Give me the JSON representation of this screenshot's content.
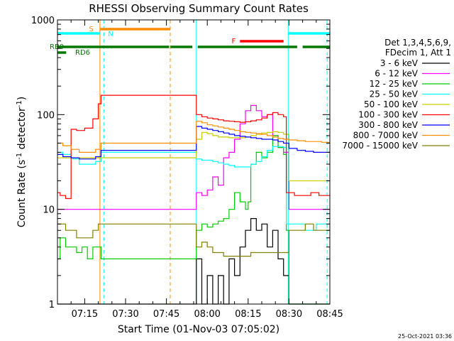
{
  "chart_data": {
    "type": "line",
    "title": "RHESSI Observing Summary Count Rates",
    "xlabel": "Start Time (01-Nov-03 07:05:02)",
    "ylabel_parts": [
      "Count Rate (s",
      "-1",
      " detector",
      "-1",
      ")"
    ],
    "yscale": "log",
    "ylim": [
      1,
      1000
    ],
    "xlim_minutes_from_0700": [
      5,
      105
    ],
    "x_ticks": [
      {
        "label": "07:15",
        "t": 15
      },
      {
        "label": "07:30",
        "t": 30
      },
      {
        "label": "07:45",
        "t": 45
      },
      {
        "label": "08:00",
        "t": 60
      },
      {
        "label": "08:15",
        "t": 75
      },
      {
        "label": "08:30",
        "t": 90
      },
      {
        "label": "08:45",
        "t": 105
      }
    ],
    "y_ticks": [
      {
        "label": "1",
        "v": 1
      },
      {
        "label": "10",
        "v": 10
      },
      {
        "label": "100",
        "v": 100
      },
      {
        "label": "1000",
        "v": 1000
      }
    ],
    "legend_header": [
      "Det 1,3,4,5,6,9,",
      "FDecim 1, Att 1"
    ],
    "series": [
      {
        "name": "3 - 6 keV",
        "color": "#000000",
        "points": [
          [
            5,
            1
          ],
          [
            21,
            1
          ],
          [
            55,
            1
          ],
          [
            56,
            3
          ],
          [
            58,
            1
          ],
          [
            60,
            2
          ],
          [
            62,
            1
          ],
          [
            64,
            2
          ],
          [
            66,
            1
          ],
          [
            68,
            3
          ],
          [
            70,
            2
          ],
          [
            72,
            4
          ],
          [
            74,
            6
          ],
          [
            76,
            8
          ],
          [
            78,
            6
          ],
          [
            80,
            7
          ],
          [
            82,
            4
          ],
          [
            84,
            6
          ],
          [
            86,
            3
          ],
          [
            88,
            2
          ],
          [
            90,
            1
          ],
          [
            105,
            1
          ]
        ]
      },
      {
        "name": "6 - 12 keV",
        "color": "#ff00ff",
        "points": [
          [
            5,
            10
          ],
          [
            55,
            10
          ],
          [
            56,
            15
          ],
          [
            58,
            14
          ],
          [
            60,
            16
          ],
          [
            62,
            22
          ],
          [
            64,
            18
          ],
          [
            66,
            35
          ],
          [
            68,
            40
          ],
          [
            70,
            55
          ],
          [
            72,
            80
          ],
          [
            74,
            110
          ],
          [
            76,
            125
          ],
          [
            78,
            110
          ],
          [
            80,
            95
          ],
          [
            82,
            100
          ],
          [
            84,
            60
          ],
          [
            86,
            45
          ],
          [
            88,
            40
          ],
          [
            90,
            10
          ],
          [
            105,
            10
          ]
        ]
      },
      {
        "name": "12 - 25 keV",
        "color": "#00cc00",
        "points": [
          [
            5,
            3
          ],
          [
            6,
            5
          ],
          [
            8,
            4
          ],
          [
            10,
            4
          ],
          [
            12,
            3.5
          ],
          [
            14,
            4
          ],
          [
            16,
            3
          ],
          [
            18,
            4
          ],
          [
            20,
            4
          ],
          [
            21,
            3
          ],
          [
            55,
            3
          ],
          [
            56,
            6
          ],
          [
            58,
            7
          ],
          [
            60,
            6.5
          ],
          [
            62,
            7
          ],
          [
            64,
            7.5
          ],
          [
            66,
            8
          ],
          [
            68,
            10
          ],
          [
            70,
            15
          ],
          [
            72,
            12
          ],
          [
            74,
            10
          ],
          [
            75,
            12
          ],
          [
            76,
            30
          ],
          [
            78,
            40
          ],
          [
            80,
            35
          ],
          [
            82,
            40
          ],
          [
            84,
            60
          ],
          [
            86,
            45
          ],
          [
            88,
            38
          ],
          [
            89,
            6
          ],
          [
            90,
            1
          ],
          [
            105,
            1
          ]
        ]
      },
      {
        "name": "25 - 50 keV",
        "color": "#00ffff",
        "points": [
          [
            5,
            40
          ],
          [
            7,
            38
          ],
          [
            10,
            34
          ],
          [
            13,
            30
          ],
          [
            16,
            30
          ],
          [
            19,
            32
          ],
          [
            21,
            40
          ],
          [
            55,
            40
          ],
          [
            56,
            34
          ],
          [
            58,
            33
          ],
          [
            60,
            33
          ],
          [
            62,
            32
          ],
          [
            64,
            31
          ],
          [
            66,
            30
          ],
          [
            68,
            29
          ],
          [
            70,
            28
          ],
          [
            72,
            28
          ],
          [
            74,
            28
          ],
          [
            76,
            30
          ],
          [
            78,
            32
          ],
          [
            80,
            36
          ],
          [
            82,
            42
          ],
          [
            84,
            46
          ],
          [
            86,
            46
          ],
          [
            88,
            45
          ],
          [
            89,
            7
          ],
          [
            94,
            7
          ],
          [
            96,
            6
          ],
          [
            100,
            7
          ],
          [
            103,
            7
          ],
          [
            105,
            7
          ]
        ]
      },
      {
        "name": "50 - 100 keV",
        "color": "#cccc00",
        "points": [
          [
            5,
            35
          ],
          [
            55,
            35
          ],
          [
            56,
            55
          ],
          [
            58,
            65
          ],
          [
            60,
            63
          ],
          [
            62,
            60
          ],
          [
            64,
            58
          ],
          [
            66,
            58
          ],
          [
            68,
            57
          ],
          [
            70,
            57
          ],
          [
            72,
            57
          ],
          [
            74,
            58
          ],
          [
            76,
            60
          ],
          [
            78,
            62
          ],
          [
            80,
            64
          ],
          [
            82,
            65
          ],
          [
            84,
            66
          ],
          [
            86,
            65
          ],
          [
            88,
            62
          ],
          [
            90,
            20
          ],
          [
            105,
            20
          ]
        ]
      },
      {
        "name": "100 - 300 keV",
        "color": "#ff0000",
        "points": [
          [
            5,
            15
          ],
          [
            6,
            14
          ],
          [
            8,
            13
          ],
          [
            9,
            13
          ],
          [
            10,
            70
          ],
          [
            12,
            68
          ],
          [
            15,
            72
          ],
          [
            18,
            90
          ],
          [
            20,
            130
          ],
          [
            21,
            160
          ],
          [
            55,
            160
          ],
          [
            56,
            100
          ],
          [
            58,
            95
          ],
          [
            60,
            92
          ],
          [
            62,
            90
          ],
          [
            64,
            88
          ],
          [
            66,
            86
          ],
          [
            68,
            85
          ],
          [
            70,
            84
          ],
          [
            72,
            83
          ],
          [
            74,
            84
          ],
          [
            76,
            86
          ],
          [
            78,
            88
          ],
          [
            80,
            92
          ],
          [
            82,
            100
          ],
          [
            84,
            105
          ],
          [
            86,
            100
          ],
          [
            88,
            95
          ],
          [
            89,
            15
          ],
          [
            92,
            14
          ],
          [
            95,
            14
          ],
          [
            98,
            15
          ],
          [
            101,
            14
          ],
          [
            103,
            14
          ],
          [
            105,
            14
          ]
        ]
      },
      {
        "name": "300 - 800 keV",
        "color": "#0000ff",
        "points": [
          [
            5,
            38
          ],
          [
            7,
            36
          ],
          [
            10,
            35
          ],
          [
            13,
            34
          ],
          [
            16,
            34
          ],
          [
            19,
            36
          ],
          [
            21,
            42
          ],
          [
            55,
            42
          ],
          [
            56,
            75
          ],
          [
            58,
            72
          ],
          [
            60,
            70
          ],
          [
            62,
            68
          ],
          [
            64,
            66
          ],
          [
            66,
            64
          ],
          [
            68,
            62
          ],
          [
            70,
            60
          ],
          [
            72,
            59
          ],
          [
            74,
            58
          ],
          [
            76,
            57
          ],
          [
            78,
            56
          ],
          [
            80,
            55
          ],
          [
            82,
            55
          ],
          [
            84,
            54
          ],
          [
            86,
            52
          ],
          [
            88,
            50
          ],
          [
            90,
            44
          ],
          [
            93,
            42
          ],
          [
            96,
            41
          ],
          [
            99,
            40
          ],
          [
            102,
            40
          ],
          [
            105,
            40
          ]
        ]
      },
      {
        "name": "800 - 7000 keV",
        "color": "#ff8c00",
        "points": [
          [
            5,
            50
          ],
          [
            7,
            47
          ],
          [
            10,
            43
          ],
          [
            13,
            40
          ],
          [
            16,
            40
          ],
          [
            19,
            43
          ],
          [
            21,
            50
          ],
          [
            55,
            50
          ],
          [
            56,
            85
          ],
          [
            58,
            82
          ],
          [
            60,
            78
          ],
          [
            62,
            76
          ],
          [
            64,
            74
          ],
          [
            66,
            72
          ],
          [
            68,
            70
          ],
          [
            70,
            68
          ],
          [
            72,
            66
          ],
          [
            74,
            65
          ],
          [
            76,
            64
          ],
          [
            78,
            63
          ],
          [
            80,
            62
          ],
          [
            82,
            60
          ],
          [
            84,
            58
          ],
          [
            86,
            56
          ],
          [
            88,
            55
          ],
          [
            90,
            54
          ],
          [
            93,
            53
          ],
          [
            96,
            52
          ],
          [
            99,
            52
          ],
          [
            102,
            51
          ],
          [
            105,
            51
          ]
        ]
      },
      {
        "name": "7000 - 15000 keV",
        "color": "#808000",
        "points": [
          [
            5,
            7
          ],
          [
            6,
            7
          ],
          [
            8,
            6
          ],
          [
            10,
            6
          ],
          [
            12,
            5
          ],
          [
            14,
            5
          ],
          [
            16,
            5
          ],
          [
            18,
            6
          ],
          [
            20,
            7
          ],
          [
            21,
            7
          ],
          [
            55,
            7
          ],
          [
            56,
            4
          ],
          [
            58,
            4.5
          ],
          [
            60,
            4
          ],
          [
            62,
            3.5
          ],
          [
            64,
            3.5
          ],
          [
            66,
            3.2
          ],
          [
            68,
            3.2
          ],
          [
            70,
            3.2
          ],
          [
            72,
            3.2
          ],
          [
            74,
            3.2
          ],
          [
            76,
            3.5
          ],
          [
            78,
            3.5
          ],
          [
            80,
            3.5
          ],
          [
            82,
            3.5
          ],
          [
            84,
            3.5
          ],
          [
            86,
            3.5
          ],
          [
            88,
            3.5
          ],
          [
            90,
            6
          ],
          [
            93,
            6
          ],
          [
            96,
            7
          ],
          [
            99,
            6
          ],
          [
            102,
            6
          ],
          [
            105,
            6
          ]
        ]
      }
    ],
    "state_bars": [
      {
        "label": "S",
        "color": "#ff8c00",
        "segments": [
          [
            20.6,
            46.4
          ]
        ]
      },
      {
        "label": "N",
        "color": "#00ffff",
        "segments": [
          [
            5,
            20.6
          ],
          [
            89.7,
            105
          ]
        ]
      },
      {
        "label": "F",
        "color": "#ff0000",
        "segments": [
          [
            72,
            88
          ]
        ]
      },
      {
        "label": "RB0",
        "color": "#007700",
        "segments": [
          [
            5,
            46
          ],
          [
            46.5,
            54.5
          ],
          [
            56.5,
            93
          ],
          [
            95,
            105
          ]
        ]
      },
      {
        "label": "RD6",
        "color": "#007700",
        "segments": [
          [
            5,
            8.2
          ]
        ]
      }
    ],
    "vertical_markers": [
      {
        "t": 5,
        "color": "#00ffff",
        "dash": false
      },
      {
        "t": 20.6,
        "color": "#ff8c00",
        "dash": false
      },
      {
        "t": 22,
        "color": "#00ffff",
        "dash": true
      },
      {
        "t": 46.4,
        "color": "#ff8c00",
        "dash": true
      },
      {
        "t": 56,
        "color": "#00ffff",
        "dash": false
      },
      {
        "t": 89.7,
        "color": "#00ffff",
        "dash": false
      },
      {
        "t": 104,
        "color": "#00ffff",
        "dash": true
      }
    ],
    "grid": false,
    "legend_position": "right"
  },
  "timestamp": "25-Oct-2021 03:36"
}
